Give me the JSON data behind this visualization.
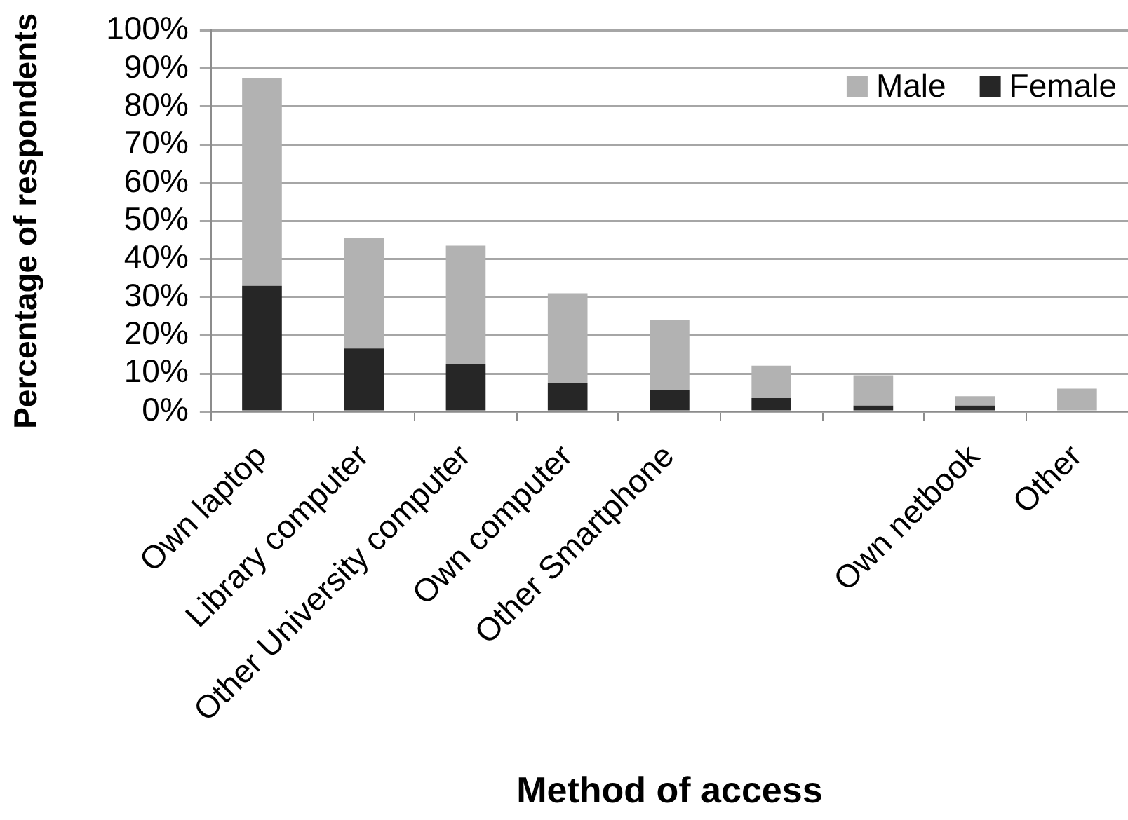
{
  "chart_data": {
    "type": "bar",
    "xlabel": "Method of access",
    "ylabel": "Percentage of respondents",
    "categories": [
      "Own laptop",
      "Library computer",
      "Other University computer",
      "Own computer",
      "Other Smartphone",
      null,
      null,
      "Own netbook",
      "Other"
    ],
    "series": [
      {
        "name": "Female",
        "color": "#262626",
        "values": [
          33,
          16.5,
          12.5,
          7.5,
          5.5,
          3.5,
          1.5,
          1.5,
          0
        ]
      },
      {
        "name": "Male",
        "color": "#b2b2b2",
        "values": [
          54.5,
          29,
          31,
          23.5,
          18.5,
          8.5,
          8,
          2.5,
          6
        ]
      }
    ],
    "stacked": true,
    "ylim": [
      0,
      100
    ],
    "yticks": [
      {
        "value": 0,
        "label": "0%"
      },
      {
        "value": 10,
        "label": "10%"
      },
      {
        "value": 20,
        "label": "20%"
      },
      {
        "value": 30,
        "label": "30%"
      },
      {
        "value": 40,
        "label": "40%"
      },
      {
        "value": 50,
        "label": "50%"
      },
      {
        "value": 60,
        "label": "60%"
      },
      {
        "value": 70,
        "label": "70%"
      },
      {
        "value": 80,
        "label": "80%"
      },
      {
        "value": 90,
        "label": "90%"
      },
      {
        "value": 100,
        "label": "100%"
      }
    ],
    "grid": "y",
    "legend": "top right"
  }
}
